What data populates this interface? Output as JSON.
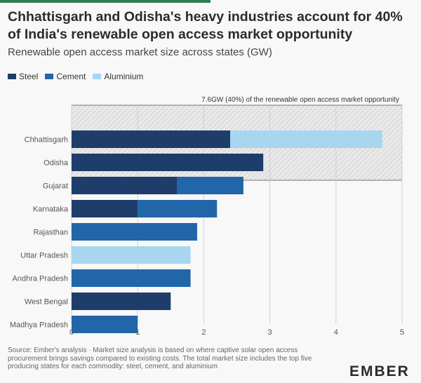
{
  "header": {
    "title": "Chhattisgarh and Odisha's heavy industries account for 40% of India's renewable open access market opportunity",
    "subtitle": "Renewable open access market size across states (GW)"
  },
  "footer": {
    "source": "Source: Ember's analysis · Market size analysis is based on where captive solar open access procurement brings savings compared to existing costs. The total market size includes the top five producing states for each commodity: steel, cement, and aluminium",
    "logo": "EMBER"
  },
  "colors": {
    "Steel": "#1f3d6b",
    "Cement": "#2166a8",
    "Aluminium": "#a9d6ef",
    "background": "#f8f8f8",
    "accent": "#2f7d4f"
  },
  "chart_data": {
    "type": "bar",
    "orientation": "horizontal",
    "stacked": true,
    "categories": [
      "Chhattisgarh",
      "Odisha",
      "Gujarat",
      "Karnataka",
      "Rajasthan",
      "Uttar Pradesh",
      "Andhra Pradesh",
      "West Bengal",
      "Madhya Pradesh"
    ],
    "series": [
      {
        "name": "Steel",
        "values": [
          2.4,
          2.9,
          1.6,
          1.0,
          0,
          0,
          0,
          1.5,
          0
        ]
      },
      {
        "name": "Cement",
        "values": [
          0,
          0,
          1.0,
          1.2,
          1.9,
          0,
          1.8,
          0,
          1.0
        ]
      },
      {
        "name": "Aluminium",
        "values": [
          2.3,
          0,
          0,
          0,
          0,
          1.8,
          0,
          0,
          0
        ]
      }
    ],
    "xlim": [
      0,
      5
    ],
    "xticks": [
      "0",
      "1",
      "2",
      "3",
      "4",
      "5"
    ],
    "grid": true,
    "legend": "top-left",
    "annotation": {
      "text": "7.6GW (40%) of the renewable open access market opportunity",
      "categories": [
        "Chhattisgarh",
        "Odisha"
      ],
      "x_range": [
        0,
        5
      ]
    }
  }
}
